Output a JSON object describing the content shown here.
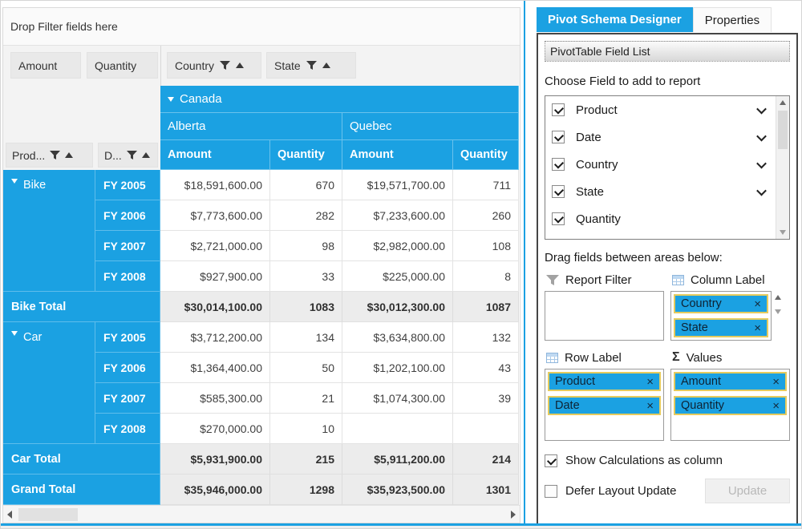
{
  "pivot": {
    "drop_filter_hint": "Drop Filter fields here",
    "value_field_buttons": [
      {
        "label": "Amount"
      },
      {
        "label": "Quantity"
      }
    ],
    "column_field_buttons": [
      {
        "label": "Country"
      },
      {
        "label": "State"
      }
    ],
    "row_field_buttons": [
      {
        "label": "Prod..."
      },
      {
        "label": "D..."
      }
    ],
    "column_headers": {
      "country": "Canada",
      "states": [
        "Alberta",
        "Quebec"
      ],
      "measures": [
        "Amount",
        "Quantity",
        "Amount",
        "Quantity"
      ]
    },
    "rows": [
      {
        "group": "Bike",
        "group_span": 4,
        "label": "FY 2005",
        "cells": [
          "$18,591,600.00",
          "670",
          "$19,571,700.00",
          "711"
        ]
      },
      {
        "label": "FY 2006",
        "cells": [
          "$7,773,600.00",
          "282",
          "$7,233,600.00",
          "260"
        ]
      },
      {
        "label": "FY 2007",
        "cells": [
          "$2,721,000.00",
          "98",
          "$2,982,000.00",
          "108"
        ]
      },
      {
        "label": "FY 2008",
        "cells": [
          "$927,900.00",
          "33",
          "$225,000.00",
          "8"
        ]
      },
      {
        "total": "Bike Total",
        "cells": [
          "$30,014,100.00",
          "1083",
          "$30,012,300.00",
          "1087"
        ]
      },
      {
        "group": "Car",
        "group_span": 4,
        "label": "FY 2005",
        "cells": [
          "$3,712,200.00",
          "134",
          "$3,634,800.00",
          "132"
        ]
      },
      {
        "label": "FY 2006",
        "cells": [
          "$1,364,400.00",
          "50",
          "$1,202,100.00",
          "43"
        ]
      },
      {
        "label": "FY 2007",
        "cells": [
          "$585,300.00",
          "21",
          "$1,074,300.00",
          "39"
        ]
      },
      {
        "label": "FY 2008",
        "cells": [
          "$270,000.00",
          "10",
          "",
          ""
        ]
      },
      {
        "total": "Car Total",
        "cells": [
          "$5,931,900.00",
          "215",
          "$5,911,200.00",
          "214"
        ]
      },
      {
        "total": "Grand Total",
        "cells": [
          "$35,946,000.00",
          "1298",
          "$35,923,500.00",
          "1301"
        ]
      }
    ]
  },
  "schema": {
    "tabs": [
      {
        "label": "Pivot Schema Designer",
        "active": true
      },
      {
        "label": "Properties",
        "active": false
      }
    ],
    "field_list_title": "PivotTable Field List",
    "choose_field_label": "Choose Field to add to report",
    "fields": [
      {
        "label": "Product",
        "checked": true,
        "expandable": true
      },
      {
        "label": "Date",
        "checked": true,
        "expandable": true
      },
      {
        "label": "Country",
        "checked": true,
        "expandable": true
      },
      {
        "label": "State",
        "checked": true,
        "expandable": true
      },
      {
        "label": "Quantity",
        "checked": true,
        "expandable": false
      }
    ],
    "drag_hint": "Drag fields between areas below:",
    "areas": {
      "report_filter": {
        "label": "Report Filter",
        "items": []
      },
      "column_label": {
        "label": "Column Label",
        "items": [
          "Country",
          "State"
        ]
      },
      "row_label": {
        "label": "Row Label",
        "items": [
          "Product",
          "Date"
        ]
      },
      "values": {
        "label": "Values",
        "items": [
          "Amount",
          "Quantity"
        ]
      }
    },
    "show_calculations_label": "Show Calculations as column",
    "defer_layout_label": "Defer Layout Update",
    "update_button": "Update"
  },
  "colors": {
    "accent": "#1BA1E2",
    "chip_border": "#E5CB5E",
    "total_bg": "#ECECEC"
  }
}
